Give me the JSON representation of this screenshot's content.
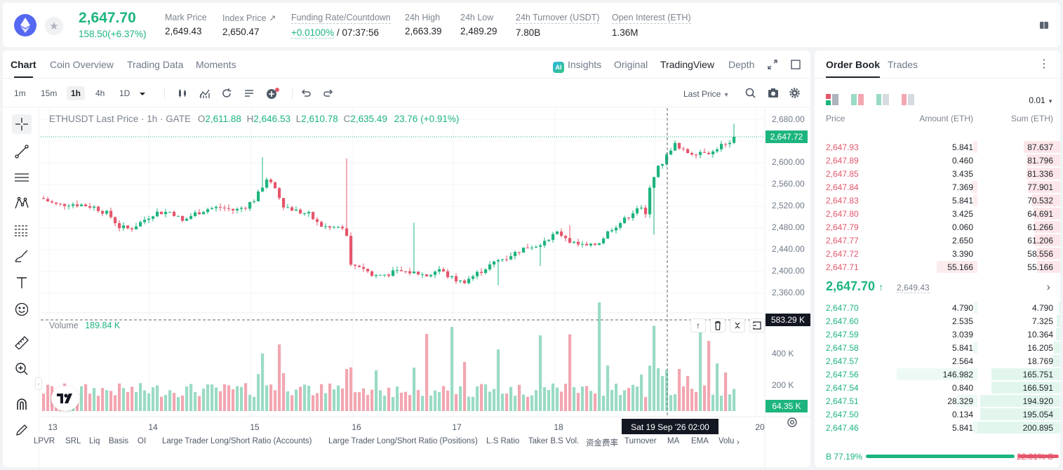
{
  "ticker": {
    "last_price": "2,647.70",
    "change": "158.50(+6.37%)",
    "stats": [
      {
        "label": "Mark Price",
        "value": "2,649.43"
      },
      {
        "label": "Index Price ↗",
        "value": "2,650.47"
      },
      {
        "label": "Funding Rate/Countdown",
        "value_green": "+0.0100%",
        "value": " / 07:37:56"
      },
      {
        "label": "24h High",
        "value": "2,663.39"
      },
      {
        "label": "24h Low",
        "value": "2,489.29"
      },
      {
        "label": "24h Turnover (USDT)",
        "value": "7.80B"
      },
      {
        "label": "Open Interest (ETH)",
        "value": "1.36M"
      }
    ]
  },
  "chart_tabs": [
    "Chart",
    "Coin Overview",
    "Trading Data",
    "Moments"
  ],
  "view_tabs": {
    "insights": "Insights",
    "original": "Original",
    "tradingview": "TradingView",
    "depth": "Depth"
  },
  "intervals": [
    "1m",
    "15m",
    "1h",
    "4h",
    "1D"
  ],
  "price_type": "Last Price",
  "legend": {
    "symbol": "ETHUSDT Last Price · 1h · GATE",
    "o_label": "O",
    "o": "2,611.88",
    "h_label": "H",
    "h": "2,646.53",
    "l_label": "L",
    "l": "2,610.78",
    "c_label": "C",
    "c": "2,635.49",
    "chg": "23.76 (+0.91%)"
  },
  "volume_legend": {
    "label": "Volume",
    "value": "189.84 K"
  },
  "price_axis": [
    "2,680.00",
    "2,600.00",
    "2,560.00",
    "2,520.00",
    "2,480.00",
    "2,440.00",
    "2,400.00",
    "2,360.00"
  ],
  "current_price_tag": "2,647.72",
  "volume_axis": [
    "400 K",
    "200 K"
  ],
  "volume_crosshair_tag": "583.29 K",
  "volume_last_tag": "64.35 K",
  "date_axis": [
    "13",
    "14",
    "15",
    "16",
    "17",
    "18",
    "20"
  ],
  "crosshair_time": "Sat 19 Sep '26   02:00",
  "indicators": [
    "LPVR",
    "SRL",
    "Liq",
    "Basis",
    "OI",
    "Large Trader Long/Short Ratio (Accounts)",
    "Large Trader Long/Short Ratio (Positions)",
    "L.S Ratio",
    "Taker B.S Vol.",
    "资金费率",
    "Turnover",
    "MA",
    "EMA",
    "Volu"
  ],
  "colors": {
    "up": "#1db57d",
    "down": "#e5566b",
    "up_vol": "#9adbc4",
    "down_vol": "#f2a6b1"
  },
  "order_book": {
    "tabs": [
      "Order Book",
      "Trades"
    ],
    "precision": "0.01",
    "headers": {
      "price": "Price",
      "amount": "Amount (ETH)",
      "sum": "Sum (ETH)"
    },
    "asks": [
      {
        "price": "2,647.93",
        "amount": "5.841",
        "sum": "87.637",
        "amt_frac": 0.04,
        "sum_frac": 0.44
      },
      {
        "price": "2,647.89",
        "amount": "0.460",
        "sum": "81.796",
        "amt_frac": 0.0,
        "sum_frac": 0.41
      },
      {
        "price": "2,647.85",
        "amount": "3.435",
        "sum": "81.336",
        "amt_frac": 0.0,
        "sum_frac": 0.41
      },
      {
        "price": "2,647.84",
        "amount": "7.369",
        "sum": "77.901",
        "amt_frac": 0.05,
        "sum_frac": 0.39
      },
      {
        "price": "2,647.83",
        "amount": "5.841",
        "sum": "70.532",
        "amt_frac": 0.04,
        "sum_frac": 0.35
      },
      {
        "price": "2,647.80",
        "amount": "3.425",
        "sum": "64.691",
        "amt_frac": 0.0,
        "sum_frac": 0.32
      },
      {
        "price": "2,647.79",
        "amount": "0.060",
        "sum": "61.266",
        "amt_frac": 0.0,
        "sum_frac": 0.31
      },
      {
        "price": "2,647.77",
        "amount": "2.650",
        "sum": "61.206",
        "amt_frac": 0.0,
        "sum_frac": 0.31
      },
      {
        "price": "2,647.72",
        "amount": "3.390",
        "sum": "58.556",
        "amt_frac": 0.0,
        "sum_frac": 0.29
      },
      {
        "price": "2,647.71",
        "amount": "55.166",
        "sum": "55.166",
        "amt_frac": 0.38,
        "sum_frac": 0.28
      }
    ],
    "mid": {
      "price": "2,647.70",
      "arrow": "↑",
      "mark": "2,649.43"
    },
    "bids": [
      {
        "price": "2,647.70",
        "amount": "4.790",
        "sum": "4.790",
        "amt_frac": 0.03,
        "sum_frac": 0.02
      },
      {
        "price": "2,647.60",
        "amount": "2.535",
        "sum": "7.325",
        "amt_frac": 0.0,
        "sum_frac": 0.04
      },
      {
        "price": "2,647.59",
        "amount": "3.039",
        "sum": "10.364",
        "amt_frac": 0.0,
        "sum_frac": 0.05
      },
      {
        "price": "2,647.58",
        "amount": "5.841",
        "sum": "16.205",
        "amt_frac": 0.04,
        "sum_frac": 0.08
      },
      {
        "price": "2,647.57",
        "amount": "2.564",
        "sum": "18.769",
        "amt_frac": 0.0,
        "sum_frac": 0.09
      },
      {
        "price": "2,647.56",
        "amount": "146.982",
        "sum": "165.751",
        "amt_frac": 0.75,
        "sum_frac": 0.83
      },
      {
        "price": "2,647.54",
        "amount": "0.840",
        "sum": "166.591",
        "amt_frac": 0.0,
        "sum_frac": 0.83
      },
      {
        "price": "2,647.51",
        "amount": "28.329",
        "sum": "194.920",
        "amt_frac": 0.19,
        "sum_frac": 0.97
      },
      {
        "price": "2,647.50",
        "amount": "0.134",
        "sum": "195.054",
        "amt_frac": 0.0,
        "sum_frac": 0.97
      },
      {
        "price": "2,647.46",
        "amount": "5.841",
        "sum": "200.895",
        "amt_frac": 0.04,
        "sum_frac": 1.0
      }
    ],
    "buy_ratio": "B 77.19%",
    "sell_ratio": "22.81% S",
    "buy_frac": 0.7719
  }
}
